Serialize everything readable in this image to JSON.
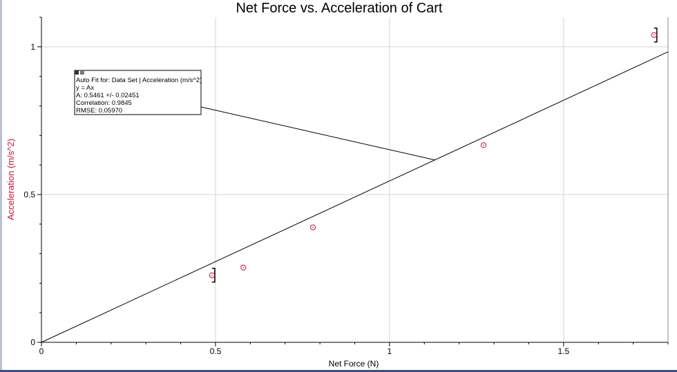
{
  "chart_data": {
    "type": "scatter",
    "title": "Net Force vs. Acceleration of Cart",
    "xlabel": "Net Force (N)",
    "ylabel": "Acceleration (m/s^2)",
    "xlim": [
      0,
      1.8
    ],
    "ylim": [
      0,
      1.1
    ],
    "x_major_ticks": [
      0,
      0.5,
      1,
      1.5
    ],
    "x_tick_labels": [
      "0",
      "0.5",
      "1",
      "1.5"
    ],
    "y_major_ticks": [
      0,
      0.5,
      1
    ],
    "y_tick_labels": [
      "0",
      "0.5",
      "1"
    ],
    "grid": true,
    "series": [
      {
        "x": [
          0.49,
          0.58,
          0.78,
          1.27,
          1.76
        ],
        "y": [
          0.227,
          0.253,
          0.389,
          0.667,
          1.04
        ],
        "color": "#c0143c",
        "marker": "circle-dot"
      }
    ],
    "fit_line": {
      "equation": "y = Ax",
      "A": 0.5461,
      "color": "#000000"
    },
    "error_brackets": [
      {
        "x": 0.49,
        "y": 0.227
      },
      {
        "x": 1.76,
        "y": 1.04
      }
    ],
    "annotation": {
      "lines": [
        "Auto Fit for: Data Set | Acceleration (m/s^2)",
        "y = Ax",
        "A: 0.5461 +/- 0.02451",
        "Correlation: 0.9845",
        "RMSE: 0.05970"
      ],
      "pointer_x": 1.13
    }
  }
}
